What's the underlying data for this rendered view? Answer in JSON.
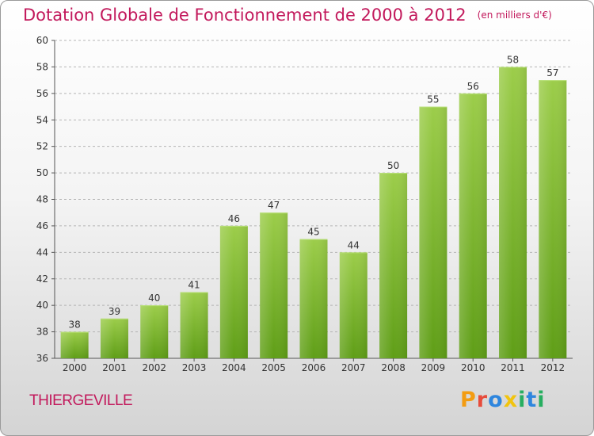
{
  "header": {
    "title": "Dotation Globale de Fonctionnement de 2000 à 2012",
    "subtitle": "(en milliers d'€)"
  },
  "commune": "THIERGEVILLE",
  "logo": {
    "letters": [
      "P",
      "r",
      "o",
      "x",
      "i",
      "t",
      "i"
    ],
    "colors": [
      "#f39c12",
      "#e74c3c",
      "#2e86de",
      "#f1c40f",
      "#27ae60",
      "#2e86de",
      "#27ae60"
    ]
  },
  "colors": {
    "accent": "#c2185b",
    "bar_top": "#9ccd4a",
    "bar_bottom": "#5f9e17",
    "grid": "#b5b5b5"
  },
  "chart_data": {
    "type": "bar",
    "title": "Dotation Globale de Fonctionnement de 2000 à 2012",
    "subtitle": "(en milliers d'€)",
    "categories": [
      "2000",
      "2001",
      "2002",
      "2003",
      "2004",
      "2005",
      "2006",
      "2007",
      "2008",
      "2009",
      "2010",
      "2011",
      "2012"
    ],
    "values": [
      38,
      39,
      40,
      41,
      46,
      47,
      45,
      44,
      50,
      55,
      56,
      58,
      57
    ],
    "ylim": [
      36,
      60
    ],
    "yticks": [
      36,
      38,
      40,
      42,
      44,
      46,
      48,
      50,
      52,
      54,
      56,
      58,
      60
    ],
    "grid": true,
    "data_labels": true
  }
}
